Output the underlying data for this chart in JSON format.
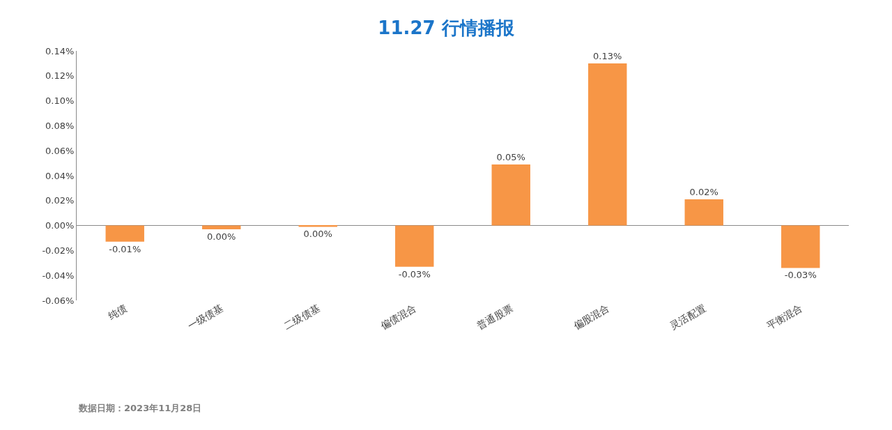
{
  "chart_data": {
    "type": "bar",
    "title": "11.27 行情播报",
    "categories": [
      "纯债",
      "一级债基",
      "二级债基",
      "偏债混合",
      "普通股票",
      "偏股混合",
      "灵活配置",
      "平衡混合"
    ],
    "values": [
      -0.013,
      -0.003,
      -0.001,
      -0.033,
      0.049,
      0.13,
      0.021,
      -0.034
    ],
    "value_labels": [
      "-0.01%",
      "0.00%",
      "0.00%",
      "-0.03%",
      "0.05%",
      "0.13%",
      "0.02%",
      "-0.03%"
    ],
    "color": "#f79646",
    "ylim": [
      -0.06,
      0.14
    ],
    "yticks": [
      {
        "value": -0.06,
        "label": "-0.06%"
      },
      {
        "value": -0.04,
        "label": "-0.04%"
      },
      {
        "value": -0.02,
        "label": "-0.02%"
      },
      {
        "value": 0,
        "label": "0.00%"
      },
      {
        "value": 0.02,
        "label": "0.02%"
      },
      {
        "value": 0.04,
        "label": "0.04%"
      },
      {
        "value": 0.06,
        "label": "0.06%"
      },
      {
        "value": 0.08,
        "label": "0.08%"
      },
      {
        "value": 0.1,
        "label": "0.10%"
      },
      {
        "value": 0.12,
        "label": "0.12%"
      },
      {
        "value": 0.14,
        "label": "0.14%"
      }
    ],
    "annotations": [
      "数据日期：2023年11月28日"
    ]
  }
}
